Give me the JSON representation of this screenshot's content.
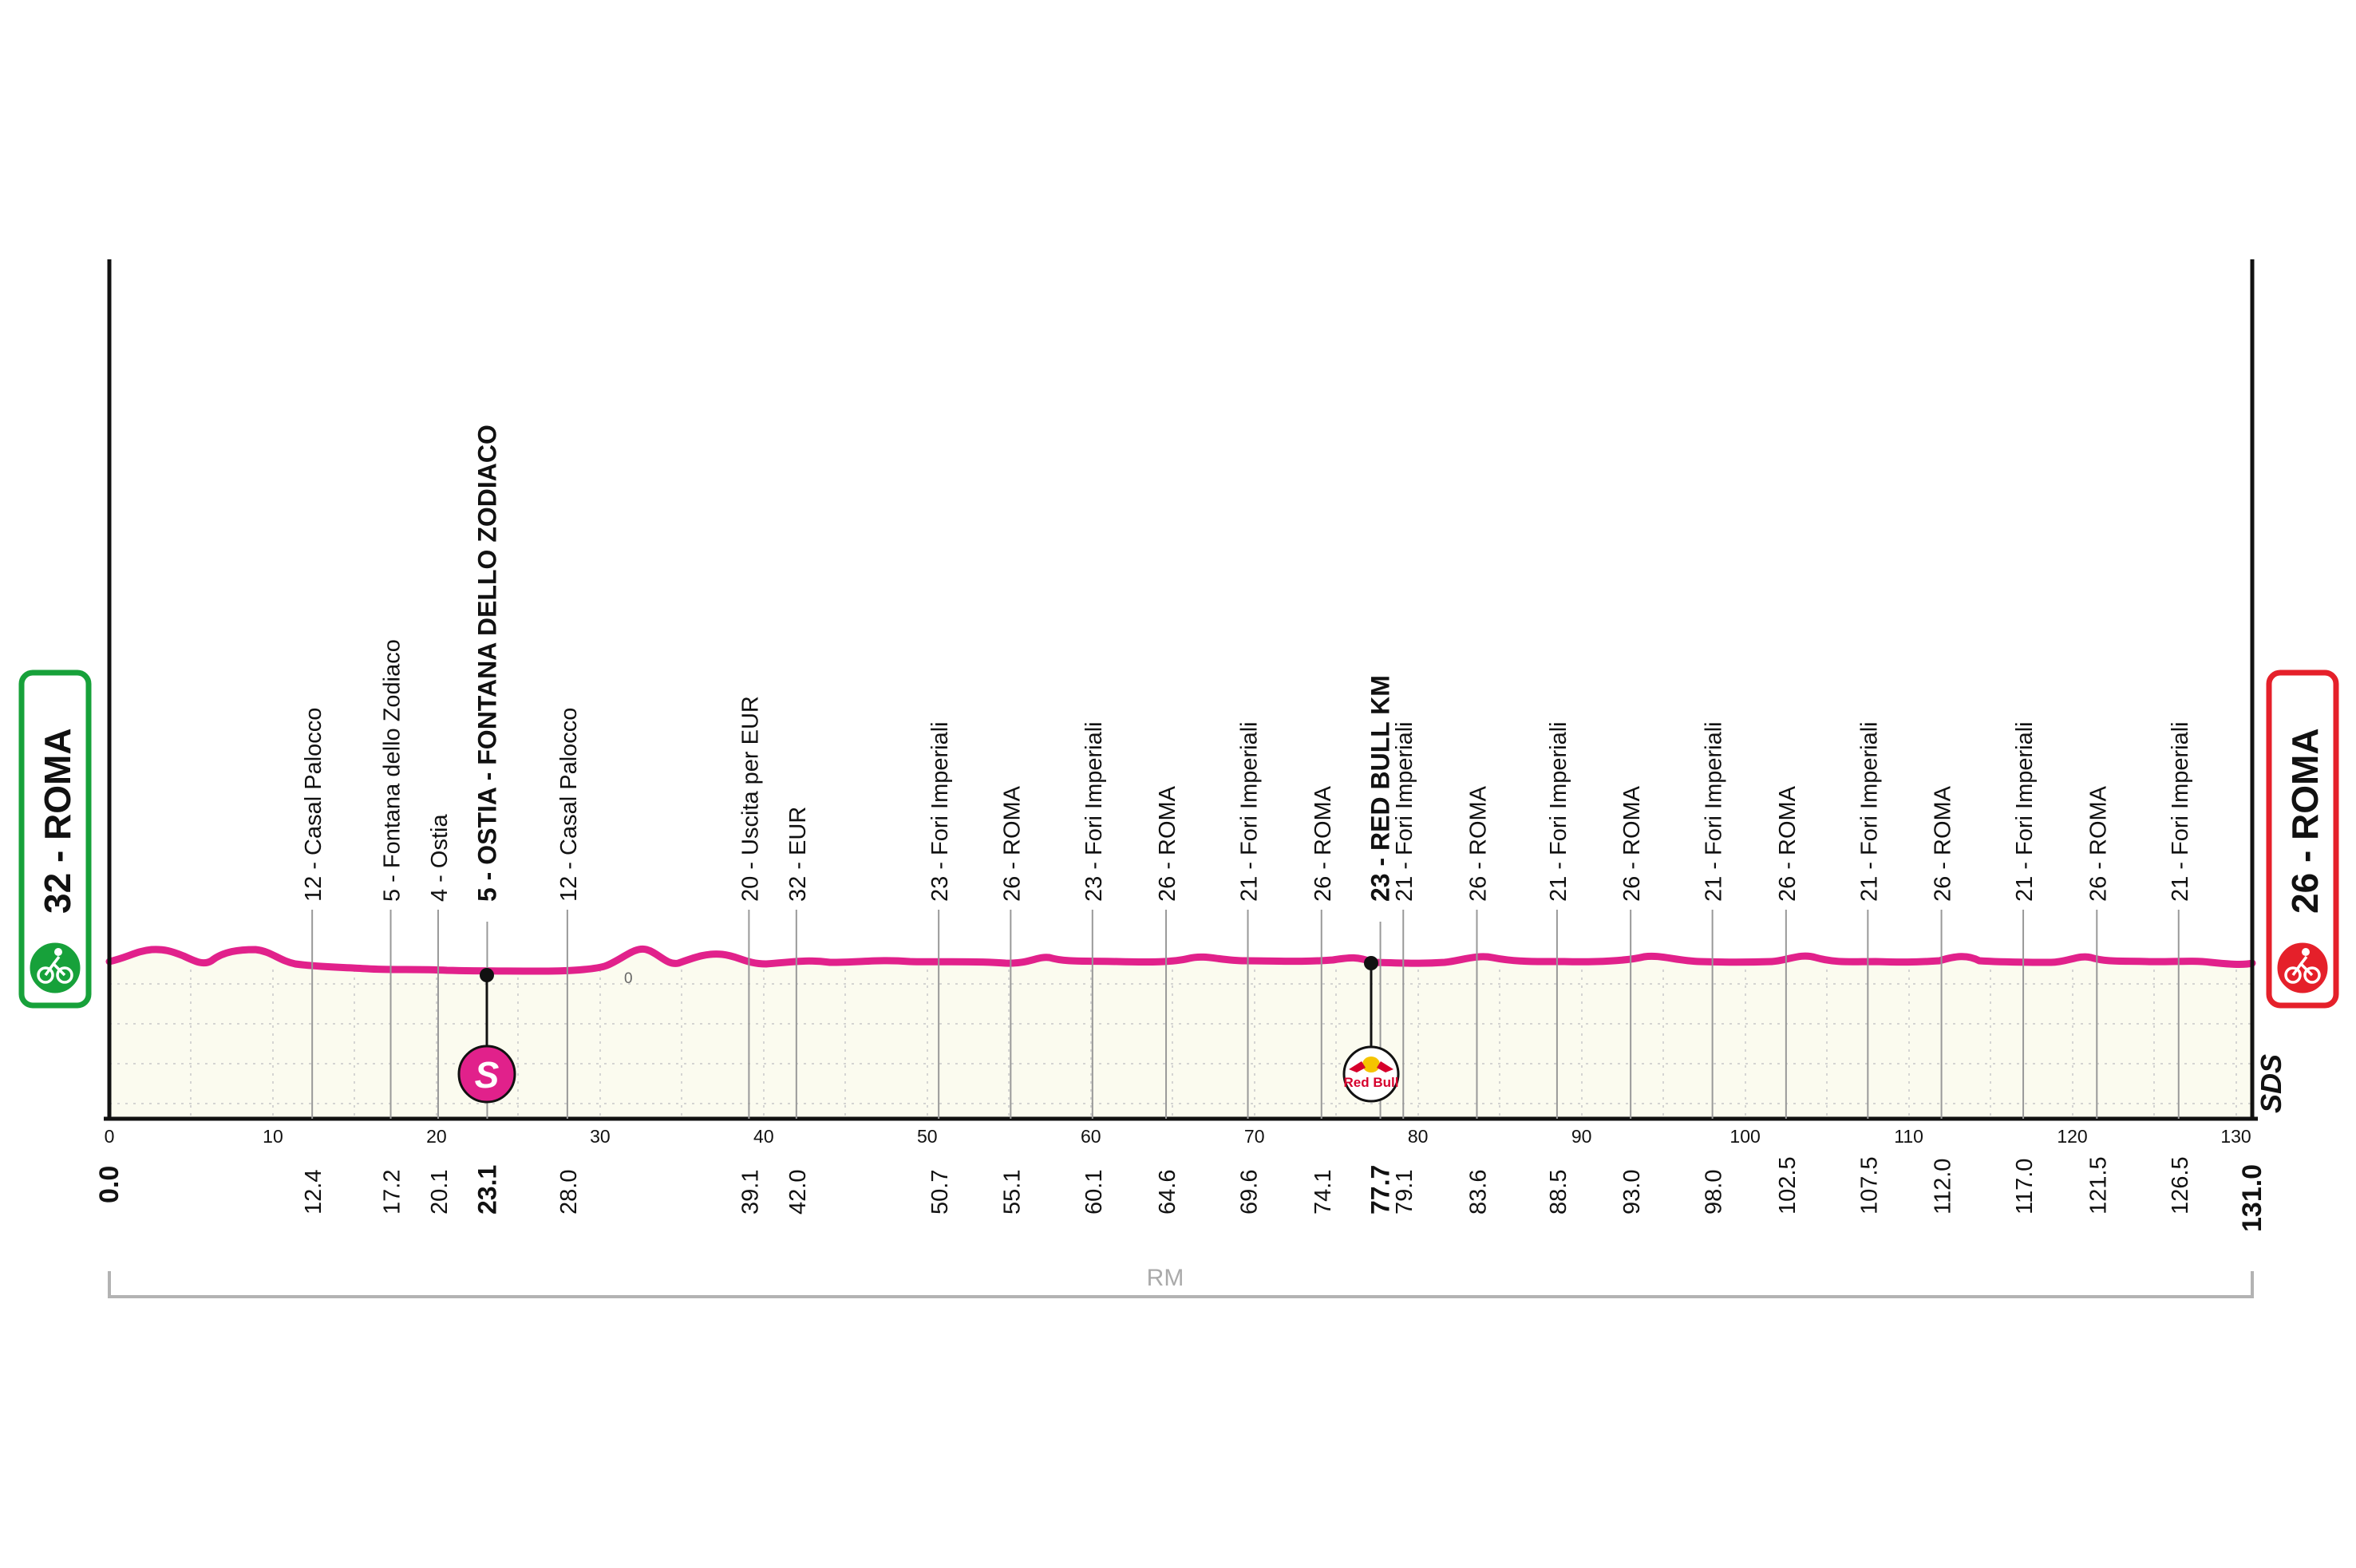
{
  "stage": {
    "start_label": "32 - ROMA",
    "finish_label": "26 - ROMA",
    "start_km": "0.0",
    "finish_km": "131.0",
    "province": "RM",
    "zero_label": "0",
    "sds_logo": "SDS"
  },
  "colors": {
    "profile_line": "#e1218b",
    "fill": "#fbfbef",
    "start": "#17a13a",
    "finish": "#e5202a",
    "sprint": "#e1218b"
  },
  "icons": {
    "start": "cyclist-icon",
    "finish": "finish-cyclist-icon",
    "sprint": "sprint-s-icon",
    "redbull": "redbull-km-icon"
  },
  "axis": {
    "ticks": [
      "0",
      "10",
      "20",
      "30",
      "40",
      "50",
      "60",
      "70",
      "80",
      "90",
      "100",
      "110",
      "120",
      "130"
    ]
  },
  "sprint": {
    "letter": "S",
    "km": 23.1
  },
  "redbull_badge": {
    "text": "Red Bull",
    "km": 77.7
  },
  "waypoints": [
    {
      "km": 12.4,
      "km_label": "12.4",
      "label": "12 - Casal Palocco",
      "bold": false
    },
    {
      "km": 17.2,
      "km_label": "17.2",
      "label": "5 - Fontana dello Zodiaco",
      "bold": false
    },
    {
      "km": 20.1,
      "km_label": "20.1",
      "label": "4 - Ostia",
      "bold": false
    },
    {
      "km": 23.1,
      "km_label": "23.1",
      "label": "5 - OSTIA - FONTANA DELLO ZODIACO",
      "bold": true
    },
    {
      "km": 28.0,
      "km_label": "28.0",
      "label": "12 - Casal Palocco",
      "bold": false
    },
    {
      "km": 39.1,
      "km_label": "39.1",
      "label": "20 - Uscita per EUR",
      "bold": false
    },
    {
      "km": 42.0,
      "km_label": "42.0",
      "label": "32 - EUR",
      "bold": false
    },
    {
      "km": 50.7,
      "km_label": "50.7",
      "label": "23 - Fori Imperiali",
      "bold": false
    },
    {
      "km": 55.1,
      "km_label": "55.1",
      "label": "26 - ROMA",
      "bold": false
    },
    {
      "km": 60.1,
      "km_label": "60.1",
      "label": "23 - Fori Imperiali",
      "bold": false
    },
    {
      "km": 64.6,
      "km_label": "64.6",
      "label": "26 - ROMA",
      "bold": false
    },
    {
      "km": 69.6,
      "km_label": "69.6",
      "label": "21 - Fori Imperiali",
      "bold": false
    },
    {
      "km": 74.1,
      "km_label": "74.1",
      "label": "26 - ROMA",
      "bold": false
    },
    {
      "km": 77.7,
      "km_label": "77.7",
      "label": "23 - RED BULL KM",
      "bold": true
    },
    {
      "km": 79.1,
      "km_label": "79.1",
      "label": "21 - Fori Imperiali",
      "bold": false
    },
    {
      "km": 83.6,
      "km_label": "83.6",
      "label": "26 - ROMA",
      "bold": false
    },
    {
      "km": 88.5,
      "km_label": "88.5",
      "label": "21 - Fori Imperiali",
      "bold": false
    },
    {
      "km": 93.0,
      "km_label": "93.0",
      "label": "26 - ROMA",
      "bold": false
    },
    {
      "km": 98.0,
      "km_label": "98.0",
      "label": "21 - Fori Imperiali",
      "bold": false
    },
    {
      "km": 102.5,
      "km_label": "102.5",
      "label": "26 - ROMA",
      "bold": false
    },
    {
      "km": 107.5,
      "km_label": "107.5",
      "label": "21 - Fori Imperiali",
      "bold": false
    },
    {
      "km": 112.0,
      "km_label": "112.0",
      "label": "26 - ROMA",
      "bold": false
    },
    {
      "km": 117.0,
      "km_label": "117.0",
      "label": "21 - Fori Imperiali",
      "bold": false
    },
    {
      "km": 121.5,
      "km_label": "121.5",
      "label": "26 - ROMA",
      "bold": false
    },
    {
      "km": 126.5,
      "km_label": "126.5",
      "label": "21 - Fori Imperiali",
      "bold": false
    }
  ]
}
